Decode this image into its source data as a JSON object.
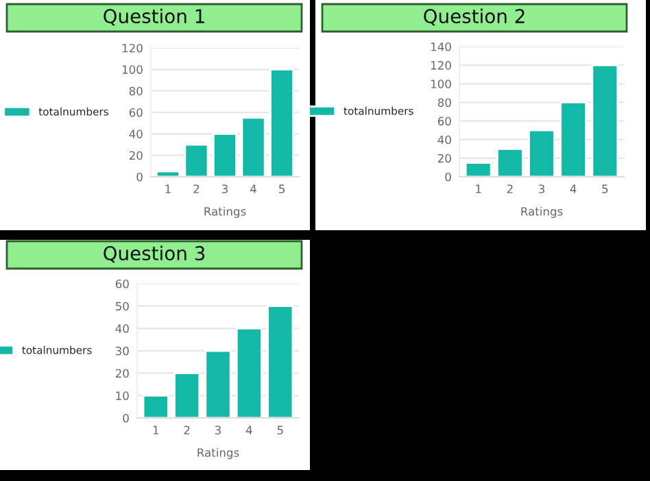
{
  "chart_data": [
    {
      "type": "bar",
      "title": "Question 1",
      "xlabel": "Ratings",
      "categories": [
        "1",
        "2",
        "3",
        "4",
        "5"
      ],
      "series": [
        {
          "name": "totalnumbers",
          "color": "#13b8a6",
          "values": [
            5,
            30,
            40,
            55,
            100
          ]
        }
      ],
      "ylim": [
        0,
        120
      ],
      "yticks": [
        0,
        20,
        40,
        60,
        80,
        100,
        120
      ],
      "grid": "y",
      "legend": "left"
    },
    {
      "type": "bar",
      "title": "Question 2",
      "xlabel": "Ratings",
      "categories": [
        "1",
        "2",
        "3",
        "4",
        "5"
      ],
      "series": [
        {
          "name": "totalnumbers",
          "color": "#13b8a6",
          "values": [
            15,
            30,
            50,
            80,
            120
          ]
        }
      ],
      "ylim": [
        0,
        140
      ],
      "yticks": [
        0,
        20,
        40,
        60,
        80,
        100,
        120,
        140
      ],
      "grid": "y",
      "legend": "left"
    },
    {
      "type": "bar",
      "title": "Question 3",
      "xlabel": "Ratings",
      "categories": [
        "1",
        "2",
        "3",
        "4",
        "5"
      ],
      "series": [
        {
          "name": "totalnumbers",
          "color": "#13b8a6",
          "values": [
            10,
            20,
            30,
            40,
            50
          ]
        }
      ],
      "ylim": [
        0,
        60
      ],
      "yticks": [
        0,
        10,
        20,
        30,
        40,
        50,
        60
      ],
      "grid": "y",
      "legend": "left"
    }
  ]
}
